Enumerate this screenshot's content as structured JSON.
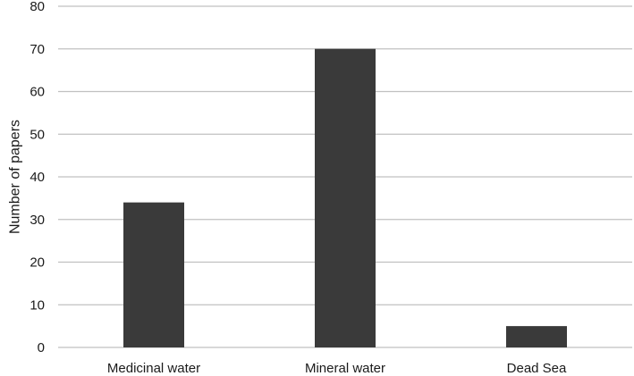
{
  "chart_data": {
    "type": "bar",
    "categories": [
      "Medicinal water",
      "Mineral water",
      "Dead Sea"
    ],
    "values": [
      34,
      70,
      5
    ],
    "title": "",
    "xlabel": "",
    "ylabel": "Number of papers",
    "ylim": [
      0,
      80
    ],
    "yticks": [
      0,
      10,
      20,
      30,
      40,
      50,
      60,
      70,
      80
    ],
    "grid": true,
    "bar_color": "#3a3a3a",
    "grid_color": "#c0c0c0"
  }
}
